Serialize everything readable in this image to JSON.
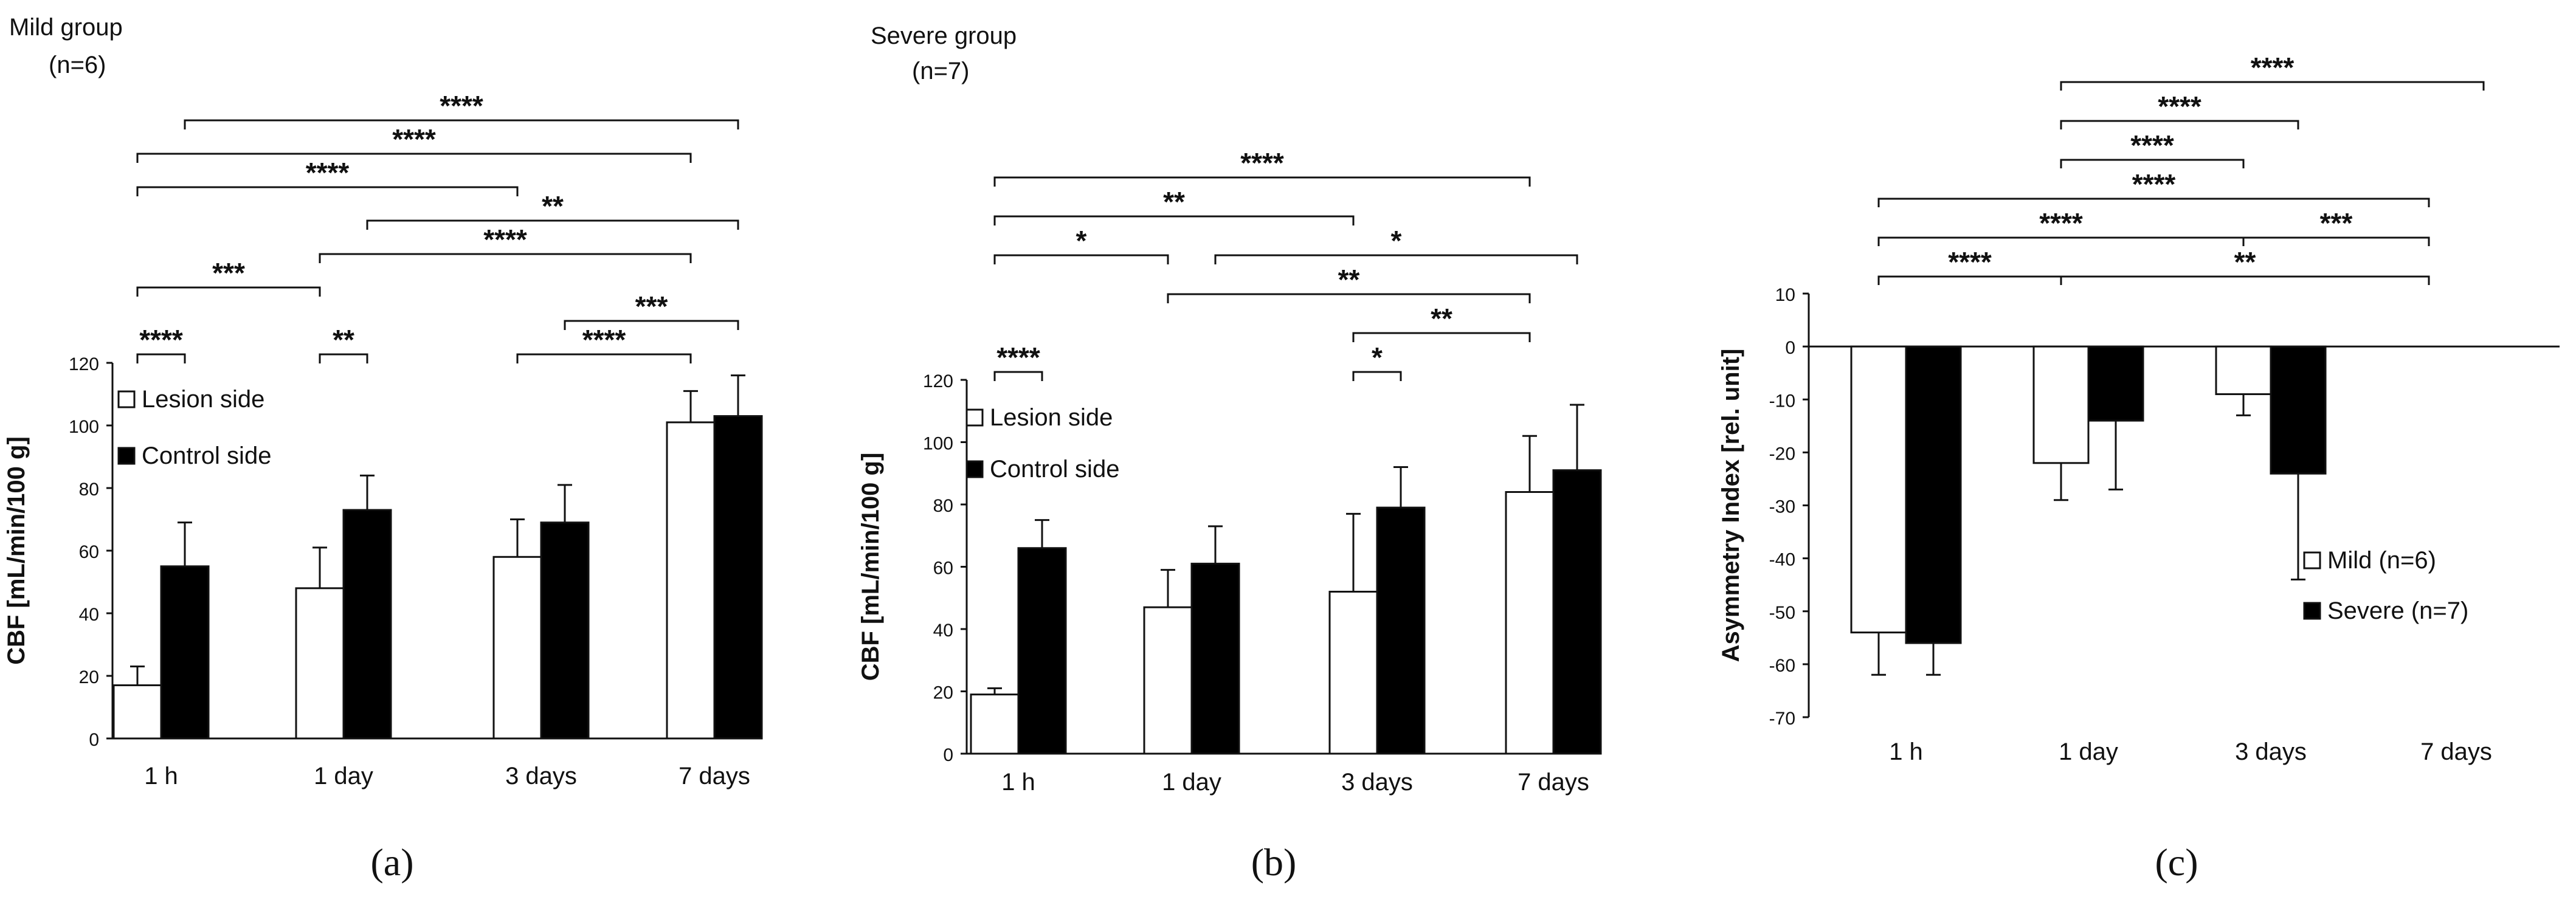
{
  "chart_data": [
    {
      "type": "bar",
      "panel": "a",
      "group_title": "Mild group",
      "group_n": "(n=6)",
      "caption": "a",
      "categories": [
        "1 h",
        "1 day",
        "3 days",
        "7 days"
      ],
      "series": [
        {
          "name": "Lesion side",
          "color": "#ffffff",
          "values": [
            17,
            48,
            58,
            101
          ],
          "errors": [
            6,
            13,
            12,
            10
          ]
        },
        {
          "name": "Control side",
          "color": "#000000",
          "values": [
            55,
            73,
            69,
            103
          ],
          "errors": [
            14,
            11,
            12,
            13
          ]
        }
      ],
      "ylabel": "CBF  [mL/min/100 g]",
      "ylim": [
        0,
        120
      ],
      "yticks": [
        0,
        20,
        40,
        60,
        80,
        100,
        120
      ],
      "legend_position": "top-left",
      "significance": [
        {
          "from": [
            0,
            0
          ],
          "to": [
            0,
            1
          ],
          "label": "****",
          "level": 0
        },
        {
          "from": [
            1,
            0
          ],
          "to": [
            1,
            1
          ],
          "label": "**",
          "level": 0
        },
        {
          "from": [
            2,
            0
          ],
          "to": [
            3,
            0
          ],
          "label": "****",
          "level": 0
        },
        {
          "from": [
            2,
            1
          ],
          "to": [
            3,
            1
          ],
          "label": "***",
          "level": 1
        },
        {
          "from": [
            0,
            0
          ],
          "to": [
            1,
            0
          ],
          "label": "***",
          "level": 2
        },
        {
          "from": [
            1,
            0
          ],
          "to": [
            3,
            0
          ],
          "label": "****",
          "level": 3
        },
        {
          "from": [
            1,
            1
          ],
          "to": [
            3,
            1
          ],
          "label": "**",
          "level": 4
        },
        {
          "from": [
            0,
            0
          ],
          "to": [
            2,
            0
          ],
          "label": "****",
          "level": 5
        },
        {
          "from": [
            0,
            0
          ],
          "to": [
            3,
            0
          ],
          "label": "****",
          "level": 6
        },
        {
          "from": [
            0,
            1
          ],
          "to": [
            3,
            1
          ],
          "label": "****",
          "level": 7
        }
      ]
    },
    {
      "type": "bar",
      "panel": "b",
      "group_title": "Severe group",
      "group_n": "(n=7)",
      "caption": "b",
      "categories": [
        "1 h",
        "1 day",
        "3 days",
        "7 days"
      ],
      "series": [
        {
          "name": "Lesion side",
          "color": "#ffffff",
          "values": [
            19,
            47,
            52,
            84
          ],
          "errors": [
            2,
            12,
            25,
            18
          ]
        },
        {
          "name": "Control side",
          "color": "#000000",
          "values": [
            66,
            61,
            79,
            91
          ],
          "errors": [
            9,
            12,
            13,
            21
          ]
        }
      ],
      "ylabel": "CBF  [mL/min/100 g]",
      "ylim": [
        0,
        120
      ],
      "yticks": [
        0,
        20,
        40,
        60,
        80,
        100,
        120
      ],
      "legend_position": "top-left",
      "significance": [
        {
          "from": [
            0,
            0
          ],
          "to": [
            0,
            1
          ],
          "label": "****",
          "level": 0
        },
        {
          "from": [
            2,
            0
          ],
          "to": [
            2,
            1
          ],
          "label": "*",
          "level": 0
        },
        {
          "from": [
            2,
            0
          ],
          "to": [
            3,
            0
          ],
          "label": "**",
          "level": 1
        },
        {
          "from": [
            1,
            0
          ],
          "to": [
            3,
            0
          ],
          "label": "**",
          "level": 2
        },
        {
          "from": [
            0,
            0
          ],
          "to": [
            1,
            0
          ],
          "label": "*",
          "level": 3
        },
        {
          "from": [
            1,
            1
          ],
          "to": [
            3,
            1
          ],
          "label": "*",
          "level": 3
        },
        {
          "from": [
            0,
            0
          ],
          "to": [
            2,
            0
          ],
          "label": "**",
          "level": 4
        },
        {
          "from": [
            0,
            0
          ],
          "to": [
            3,
            0
          ],
          "label": "****",
          "level": 5
        }
      ]
    },
    {
      "type": "bar",
      "panel": "c",
      "caption": "c",
      "categories": [
        "1 h",
        "1 day",
        "3 days",
        "7 days"
      ],
      "series": [
        {
          "name": "Mild (n=6)",
          "color": "#ffffff",
          "values": [
            -54,
            -22,
            -9,
            0
          ],
          "errors": [
            8,
            7,
            4,
            0
          ]
        },
        {
          "name": "Severe (n=7)",
          "color": "#000000",
          "values": [
            -56,
            -14,
            -24,
            0
          ],
          "errors": [
            6,
            13,
            20,
            0
          ]
        }
      ],
      "ylabel": "Asymmetry Index  [rel. unit]",
      "ylim": [
        -70,
        10
      ],
      "yticks": [
        10,
        0,
        -10,
        -20,
        -30,
        -40,
        -50,
        -60,
        -70
      ],
      "legend_position": "bottom-right",
      "significance": [
        {
          "from": [
            0,
            0
          ],
          "to": [
            1,
            0
          ],
          "label": "****",
          "level": 0
        },
        {
          "from": [
            1,
            0
          ],
          "to": [
            3,
            0
          ],
          "label": "**",
          "level": 0
        },
        {
          "from": [
            2,
            0
          ],
          "to": [
            3,
            0
          ],
          "label": "***",
          "level": 1
        },
        {
          "from": [
            0,
            0
          ],
          "to": [
            2,
            0
          ],
          "label": "****",
          "level": 1
        },
        {
          "from": [
            0,
            0
          ],
          "to": [
            3,
            0
          ],
          "label": "****",
          "level": 2
        },
        {
          "from": [
            1,
            0
          ],
          "to": [
            2,
            0
          ],
          "label": "****",
          "level": 3
        },
        {
          "from": [
            1,
            0
          ],
          "to": [
            2,
            1
          ],
          "label": "****",
          "level": 4
        },
        {
          "from": [
            1,
            0
          ],
          "to": [
            3,
            1
          ],
          "label": "****",
          "level": 5
        }
      ]
    }
  ]
}
